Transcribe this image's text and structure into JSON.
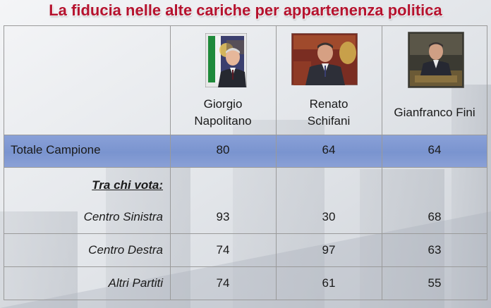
{
  "title": "La fiducia nelle alte cariche per appartenenza politica",
  "chart_data": {
    "type": "table",
    "columns": [
      "Giorgio Napolitano",
      "Renato Schifani",
      "Gianfranco Fini"
    ],
    "column_lines": [
      [
        "Giorgio",
        "Napolitano"
      ],
      [
        "Renato",
        "Schifani"
      ],
      [
        "Gianfranco Fini"
      ]
    ],
    "total_row": {
      "label": "Totale Campione",
      "values": [
        80,
        64,
        64
      ]
    },
    "section_label": "Tra chi vota:",
    "rows": [
      {
        "label": "Centro Sinistra",
        "values": [
          93,
          30,
          68
        ]
      },
      {
        "label": "Centro Destra",
        "values": [
          74,
          97,
          63
        ]
      },
      {
        "label": "Altri Partiti",
        "values": [
          74,
          61,
          55
        ]
      }
    ]
  },
  "colors": {
    "title": "#b5122e",
    "band": "#7d96d0",
    "grid": "#9a9a9a"
  },
  "icons": [
    "portrait-napolitano-icon",
    "portrait-schifani-icon",
    "portrait-fini-icon"
  ]
}
